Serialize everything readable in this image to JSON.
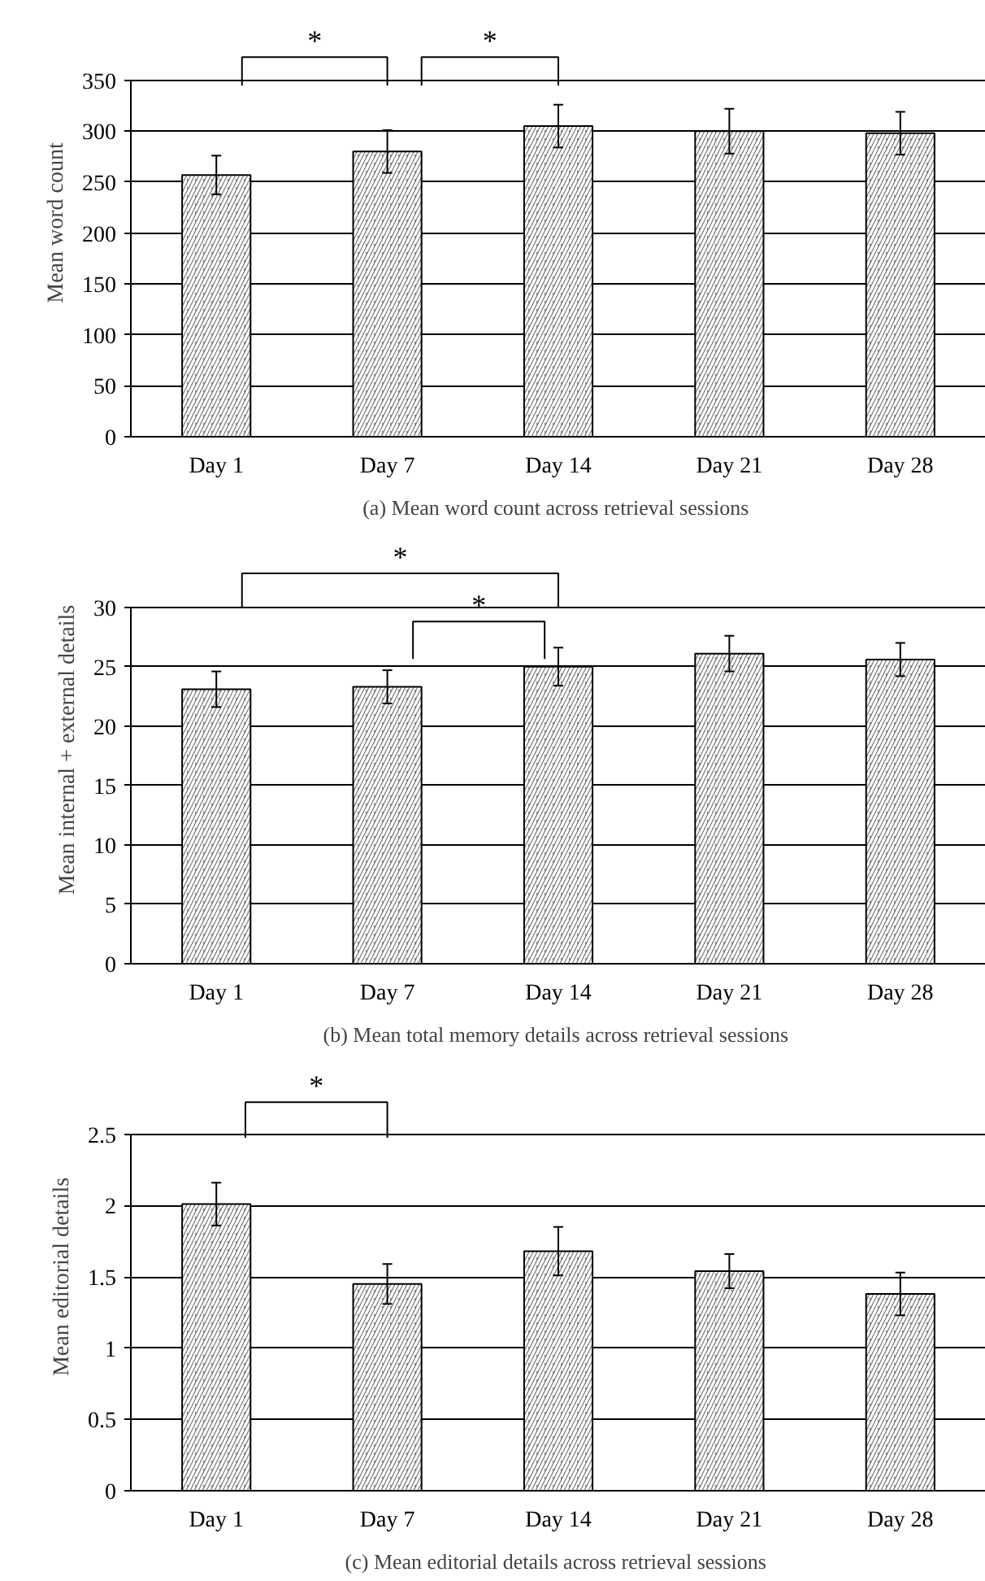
{
  "chart_data": [
    {
      "type": "bar",
      "title": "(a)  Mean word count across retrieval sessions",
      "ylabel": "Mean word count",
      "categories": [
        "Day 1",
        "Day 7",
        "Day 14",
        "Day 21",
        "Day 28"
      ],
      "series": [
        {
          "color": "#808080",
          "values": [
            257,
            280,
            305,
            300,
            298
          ],
          "errors": [
            19,
            21,
            21,
            22,
            21
          ]
        }
      ],
      "ylim": [
        0,
        350
      ],
      "yticks": [
        0,
        50,
        100,
        150,
        200,
        250,
        300,
        350
      ],
      "grid": "y",
      "annotations": [
        "*",
        "*"
      ]
    },
    {
      "type": "bar",
      "title": "(b)  Mean total memory details across retrieval sessions",
      "ylabel": "Mean internal + external details",
      "categories": [
        "Day 1",
        "Day 7",
        "Day 14",
        "Day 21",
        "Day 28"
      ],
      "series": [
        {
          "color": "#808080",
          "values": [
            23.1,
            23.3,
            25.0,
            26.1,
            25.6
          ],
          "errors": [
            1.5,
            1.4,
            1.6,
            1.5,
            1.4
          ]
        }
      ],
      "ylim": [
        0,
        30
      ],
      "yticks": [
        0,
        5,
        10,
        15,
        20,
        25,
        30
      ],
      "grid": "y",
      "annotations": [
        "*",
        "*"
      ]
    },
    {
      "type": "bar",
      "title": "(c)  Mean editorial details across retrieval sessions",
      "ylabel": "Mean editorial details",
      "categories": [
        "Day 1",
        "Day 7",
        "Day 14",
        "Day 21",
        "Day 28"
      ],
      "series": [
        {
          "color": "#808080",
          "values": [
            2.01,
            1.45,
            1.68,
            1.54,
            1.38
          ],
          "errors": [
            0.15,
            0.14,
            0.17,
            0.12,
            0.15
          ]
        }
      ],
      "ylim": [
        0,
        2.5
      ],
      "yticks": [
        0,
        0.5,
        1,
        1.5,
        2,
        2.5
      ],
      "grid": "y",
      "annotations": [
        "*"
      ]
    }
  ]
}
